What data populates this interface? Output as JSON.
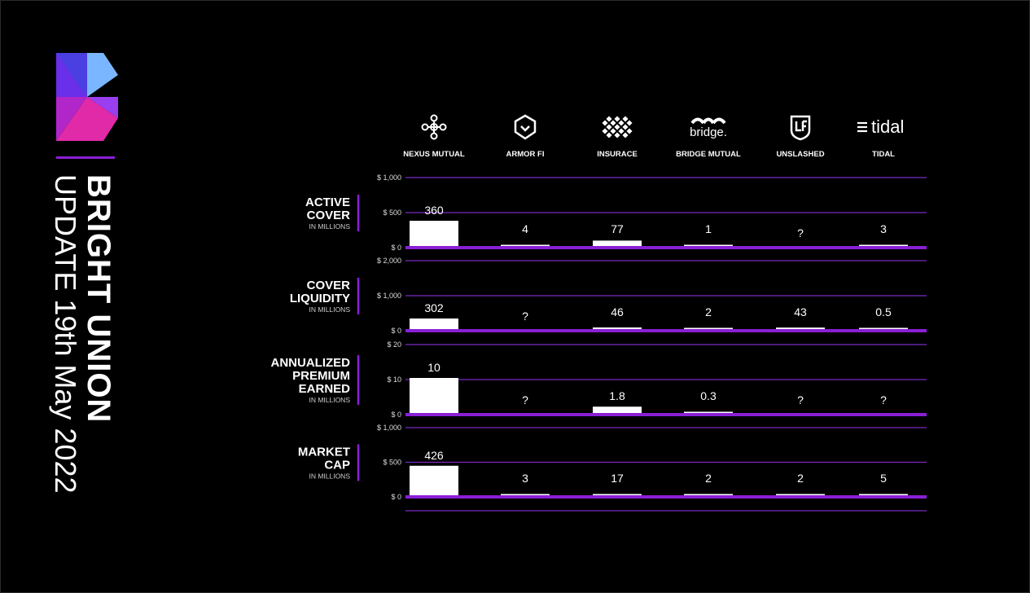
{
  "brand": {
    "name": "BRIGHT UNION",
    "update": "UPDATE 19th May 2022",
    "accent_color": "#8a1fd6",
    "logo_icon": "bright-union-logo-icon"
  },
  "providers": [
    {
      "name": "NEXUS MUTUAL",
      "icon": "nexus-mutual-logo-icon"
    },
    {
      "name": "ARMOR FI",
      "icon": "armor-fi-shield-icon"
    },
    {
      "name": "INSURACE",
      "icon": "insurace-checker-icon"
    },
    {
      "name": "BRIDGE MUTUAL",
      "icon": "bridge-mutual-logo-icon",
      "logo_text": "bridge."
    },
    {
      "name": "UNSLASHED",
      "icon": "unslashed-shield-icon"
    },
    {
      "name": "TIDAL",
      "icon": "tidal-logo-icon",
      "logo_text": "tidal"
    }
  ],
  "chart_data": [
    {
      "type": "bar",
      "title": "ACTIVE COVER",
      "unit": "IN MILLIONS",
      "categories": [
        "NEXUS MUTUAL",
        "ARMOR FI",
        "INSURACE",
        "BRIDGE MUTUAL",
        "UNSLASHED",
        "TIDAL"
      ],
      "values": [
        360,
        4,
        77,
        1,
        null,
        3
      ],
      "labels": [
        "360",
        "4",
        "77",
        "1",
        "?",
        "3"
      ],
      "yticks": [
        "$ 1,000",
        "$ 500",
        "$ 0"
      ],
      "ylim": [
        0,
        1000
      ]
    },
    {
      "type": "bar",
      "title": "COVER LIQUIDITY",
      "unit": "IN MILLIONS",
      "categories": [
        "NEXUS MUTUAL",
        "ARMOR FI",
        "INSURACE",
        "BRIDGE MUTUAL",
        "UNSLASHED",
        "TIDAL"
      ],
      "values": [
        302,
        null,
        46,
        2,
        43,
        0.5
      ],
      "labels": [
        "302",
        "?",
        "46",
        "2",
        "43",
        "0.5"
      ],
      "yticks": [
        "$ 2,000",
        "$ 1,000",
        "$ 0"
      ],
      "ylim": [
        0,
        2000
      ]
    },
    {
      "type": "bar",
      "title": "ANNUALIZED PREMIUM EARNED",
      "unit": "IN MILLIONS",
      "categories": [
        "NEXUS MUTUAL",
        "ARMOR FI",
        "INSURACE",
        "BRIDGE MUTUAL",
        "UNSLASHED",
        "TIDAL"
      ],
      "values": [
        10,
        null,
        1.8,
        0.3,
        null,
        null
      ],
      "labels": [
        "10",
        "?",
        "1.8",
        "0.3",
        "?",
        "?"
      ],
      "yticks": [
        "$ 20",
        "$ 10",
        "$ 0"
      ],
      "ylim": [
        0,
        20
      ]
    },
    {
      "type": "bar",
      "title": "MARKET CAP",
      "unit": "IN MILLIONS",
      "categories": [
        "NEXUS MUTUAL",
        "ARMOR FI",
        "INSURACE",
        "BRIDGE MUTUAL",
        "UNSLASHED",
        "TIDAL"
      ],
      "values": [
        426,
        3,
        17,
        2,
        2,
        5
      ],
      "labels": [
        "426",
        "3",
        "17",
        "2",
        "2",
        "5"
      ],
      "yticks": [
        "$ 1,000",
        "$ 500",
        "$ 0"
      ],
      "ylim": [
        0,
        1000
      ]
    }
  ]
}
